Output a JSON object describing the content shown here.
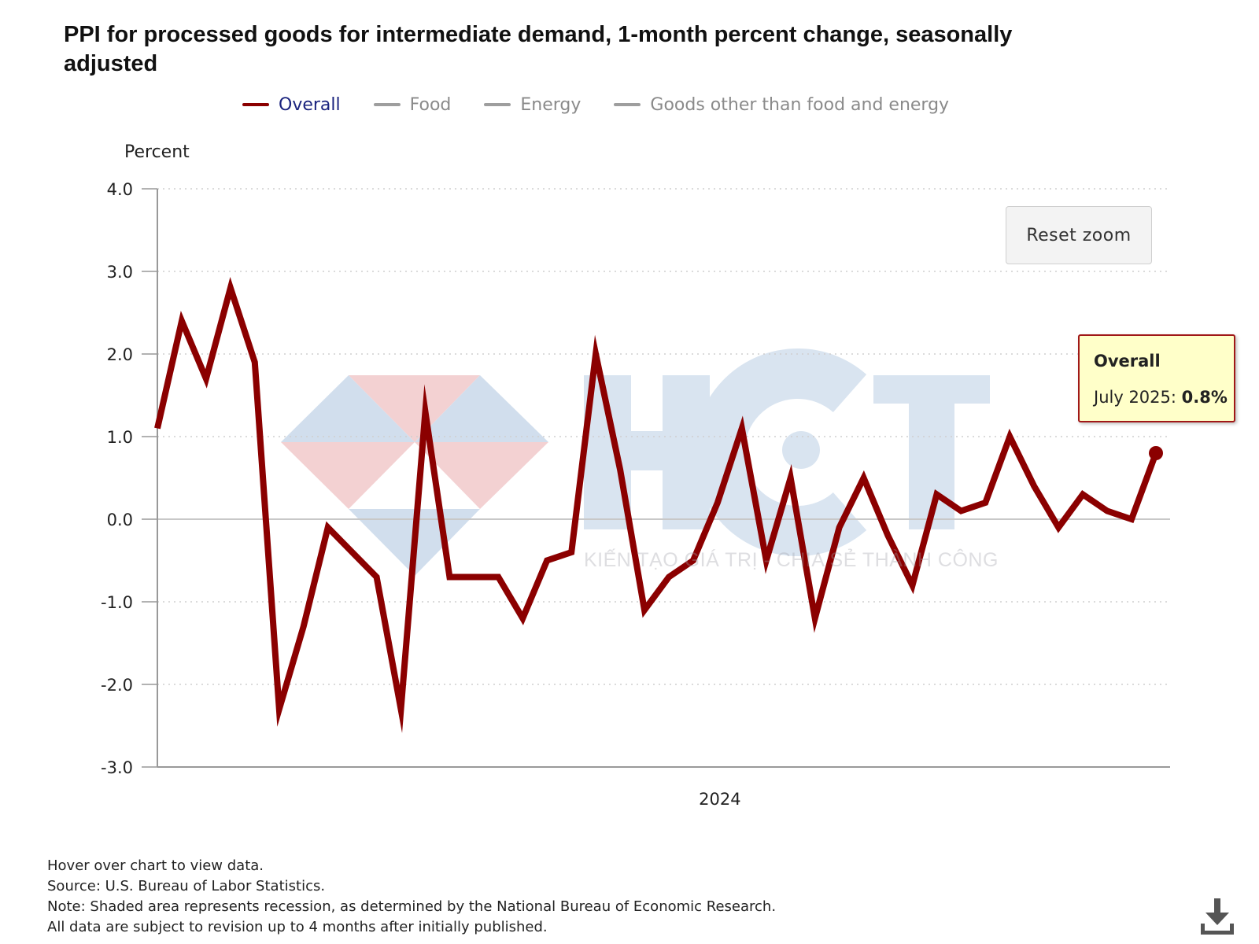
{
  "title": "PPI for processed goods for intermediate demand, 1-month percent change, seasonally adjusted",
  "legend": [
    {
      "label": "Overall",
      "color": "#8b0000",
      "text_color": "#1a237e"
    },
    {
      "label": "Food",
      "color": "#9e9e9e",
      "text_color": "#8a8a8a"
    },
    {
      "label": "Energy",
      "color": "#9e9e9e",
      "text_color": "#8a8a8a"
    },
    {
      "label": "Goods other than food and energy",
      "color": "#9e9e9e",
      "text_color": "#8a8a8a"
    }
  ],
  "reset_zoom_label": "Reset zoom",
  "tooltip": {
    "series": "Overall",
    "period": "July 2025:",
    "value": "0.8%"
  },
  "watermark": {
    "tagline": "KIẾN TẠO GIÁ TRỊ - CHIA SẺ THÀNH CÔNG"
  },
  "footer": {
    "line1": "Hover over chart to view data.",
    "line2": "Source: U.S. Bureau of Labor Statistics.",
    "line3": "Note: Shaded area represents recession, as determined by the National Bureau of Economic Research.",
    "line4": "All data are subject to revision up to 4 months after initially published."
  },
  "chart_data": {
    "type": "line",
    "title": "PPI for processed goods for intermediate demand, 1-month percent change, seasonally adjusted",
    "ylabel": "Percent",
    "xlabel": "",
    "ylim": [
      -3.0,
      4.0
    ],
    "yticks": [
      "4.0",
      "3.0",
      "2.0",
      "1.0",
      "0.0",
      "-1.0",
      "-2.0",
      "-3.0"
    ],
    "ytick_values": [
      4,
      3,
      2,
      1,
      0,
      -1,
      -2,
      -3
    ],
    "x_tick_labels": [
      {
        "label": "2024",
        "index": 23
      }
    ],
    "highlight": {
      "series": "Overall",
      "label": "July 2025",
      "value": 0.8
    },
    "grid": "horizontal dotted",
    "series": [
      {
        "name": "Overall",
        "color": "#8b0000",
        "values": [
          1.1,
          2.4,
          1.7,
          2.8,
          1.9,
          -2.3,
          -1.3,
          -0.1,
          -0.4,
          -0.7,
          -2.3,
          1.3,
          -0.7,
          -0.7,
          -0.7,
          -1.2,
          -0.5,
          -0.4,
          2.0,
          0.6,
          -1.1,
          -0.7,
          -0.5,
          0.2,
          1.1,
          -0.5,
          0.5,
          -1.2,
          -0.1,
          0.5,
          -0.2,
          -0.8,
          0.3,
          0.1,
          0.2,
          1.0,
          0.4,
          -0.1,
          0.3,
          0.1,
          0.0,
          0.8
        ]
      }
    ]
  }
}
